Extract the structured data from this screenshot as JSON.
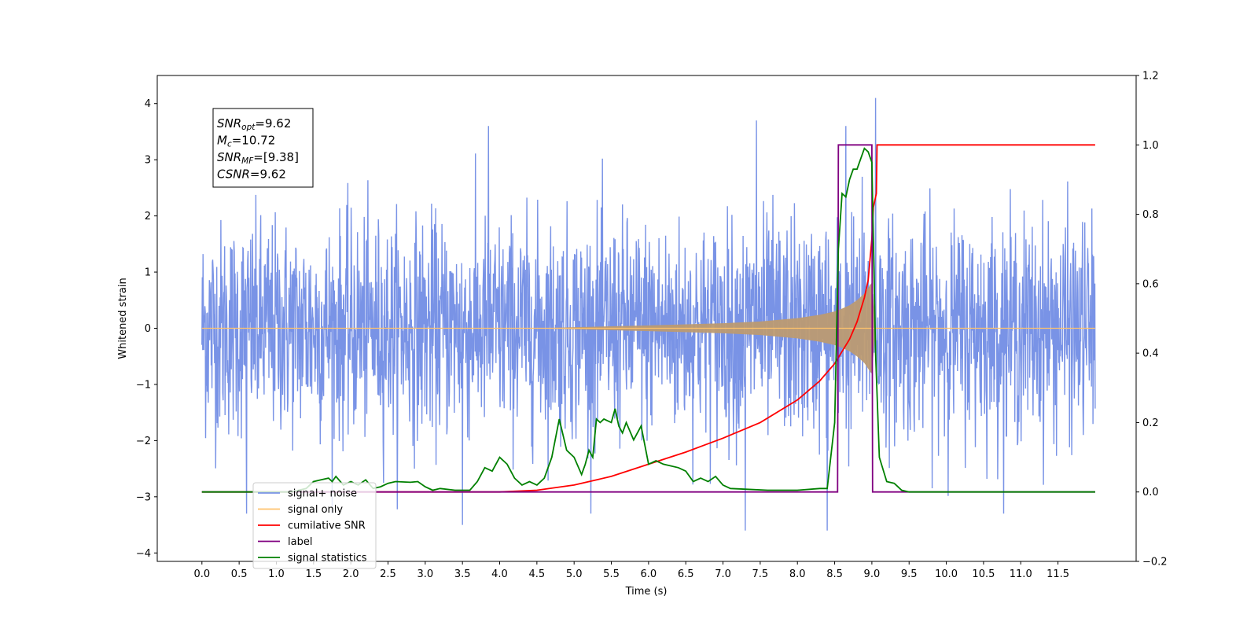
{
  "chart_data": {
    "type": "line",
    "xlabel": "Time (s)",
    "ylabel": "Whitened strain",
    "xlim": [
      -0.6,
      12.55
    ],
    "ylim": [
      -4.15,
      4.5
    ],
    "y2lim": [
      -0.2,
      1.2
    ],
    "x_ticks": [
      "0.0",
      "0.5",
      "1.0",
      "1.5",
      "2.0",
      "2.5",
      "3.0",
      "3.5",
      "4.0",
      "4.5",
      "5.0",
      "5.5",
      "6.0",
      "6.5",
      "7.0",
      "7.5",
      "8.0",
      "8.5",
      "9.0",
      "9.5",
      "10.0",
      "10.5",
      "11.0",
      "11.5"
    ],
    "x_tick_values": [
      0,
      0.5,
      1,
      1.5,
      2,
      2.5,
      3,
      3.5,
      4,
      4.5,
      5,
      5.5,
      6,
      6.5,
      7,
      7.5,
      8,
      8.5,
      9,
      9.5,
      10,
      10.5,
      11,
      11.5
    ],
    "y_ticks": [
      "−4",
      "−3",
      "−2",
      "−1",
      "0",
      "1",
      "2",
      "3",
      "4"
    ],
    "y_tick_values": [
      -4,
      -3,
      -2,
      -1,
      0,
      1,
      2,
      3,
      4
    ],
    "y2_ticks": [
      "−0.2",
      "0.0",
      "0.2",
      "0.4",
      "0.6",
      "0.8",
      "1.0",
      "1.2"
    ],
    "y2_tick_values": [
      -0.2,
      0,
      0.2,
      0.4,
      0.6,
      0.8,
      1.0,
      1.2
    ],
    "annotation": {
      "lines": [
        {
          "main": "SNR",
          "sub": "opt",
          "rest": "=9.62"
        },
        {
          "main": "M",
          "sub": "c",
          "rest": "=10.72"
        },
        {
          "main": "SNR",
          "sub": "MF",
          "rest": "=[9.38]"
        },
        {
          "main": "CSNR",
          "sub": "",
          "rest": "=9.62"
        }
      ]
    },
    "legend_position": "lower-left",
    "legend": [
      {
        "label": "signal+ noise",
        "color": "#7993e6"
      },
      {
        "label": "signal only",
        "color": "#ffc36b"
      },
      {
        "label": "cumilative SNR",
        "color": "#ff0000"
      },
      {
        "label": "label",
        "color": "#800080"
      },
      {
        "label": "signal statistics",
        "color": "#008000"
      }
    ],
    "series": [
      {
        "name": "signal+ noise",
        "axis": "left",
        "color": "#7993e6",
        "description_range": [
          0.0,
          12.0
        ],
        "peak_values": [
          {
            "x": 9.05,
            "y": 4.1
          },
          {
            "x": 7.45,
            "y": 3.7
          },
          {
            "x": 8.65,
            "y": 3.6
          },
          {
            "x": 3.85,
            "y": 3.6
          },
          {
            "x": 8.4,
            "y": -3.6
          },
          {
            "x": 7.3,
            "y": -3.6
          },
          {
            "x": 3.5,
            "y": -3.5
          },
          {
            "x": 0.6,
            "y": -3.3
          }
        ]
      },
      {
        "name": "signal only",
        "axis": "left",
        "color": "#ffc36b",
        "x": [
          0,
          4.5,
          5.0,
          6.0,
          7.0,
          7.5,
          8.0,
          8.3,
          8.5,
          8.6,
          8.7,
          8.8,
          8.9,
          8.97,
          9.0,
          9.05,
          12.0
        ],
        "y": [
          0.0,
          0.0,
          0.02,
          0.05,
          0.09,
          0.12,
          0.18,
          0.24,
          0.3,
          0.35,
          0.41,
          0.5,
          0.62,
          0.76,
          0.81,
          0.0,
          0.0
        ]
      },
      {
        "name": "cumilative SNR",
        "axis": "right",
        "color": "#ff0000",
        "x": [
          0.0,
          4.0,
          4.5,
          5.0,
          5.5,
          6.0,
          6.5,
          7.0,
          7.5,
          8.0,
          8.3,
          8.5,
          8.7,
          8.8,
          8.9,
          8.95,
          9.0,
          9.02,
          9.06,
          9.07,
          12.0
        ],
        "y": [
          0.0,
          0.0,
          0.005,
          0.02,
          0.045,
          0.08,
          0.115,
          0.155,
          0.2,
          0.265,
          0.32,
          0.37,
          0.44,
          0.49,
          0.56,
          0.61,
          0.73,
          0.82,
          0.86,
          1.0,
          1.0
        ]
      },
      {
        "name": "label",
        "axis": "right",
        "color": "#800080",
        "x": [
          0.0,
          8.54,
          8.55,
          9.0,
          9.01,
          12.0
        ],
        "y": [
          0.0,
          0.0,
          1.0,
          1.0,
          0.0,
          0.0
        ]
      },
      {
        "name": "signal statistics",
        "axis": "right",
        "color": "#008000",
        "x": [
          0.0,
          1.2,
          1.4,
          1.5,
          1.6,
          1.7,
          1.75,
          1.8,
          1.9,
          2.0,
          2.1,
          2.2,
          2.3,
          2.4,
          2.5,
          2.6,
          2.8,
          2.9,
          3.0,
          3.1,
          3.2,
          3.4,
          3.6,
          3.7,
          3.8,
          3.9,
          4.0,
          4.1,
          4.2,
          4.3,
          4.4,
          4.5,
          4.6,
          4.7,
          4.8,
          4.9,
          5.0,
          5.1,
          5.15,
          5.2,
          5.25,
          5.3,
          5.35,
          5.4,
          5.5,
          5.55,
          5.6,
          5.65,
          5.7,
          5.8,
          5.9,
          6.0,
          6.1,
          6.2,
          6.4,
          6.5,
          6.6,
          6.7,
          6.8,
          6.9,
          7.0,
          7.1,
          7.3,
          7.6,
          8.0,
          8.3,
          8.4,
          8.5,
          8.55,
          8.6,
          8.65,
          8.7,
          8.75,
          8.8,
          8.85,
          8.9,
          8.95,
          9.0,
          9.05,
          9.1,
          9.2,
          9.3,
          9.4,
          9.5,
          12.0
        ],
        "y": [
          0.0,
          0.0,
          0.01,
          0.03,
          0.035,
          0.04,
          0.03,
          0.045,
          0.02,
          0.03,
          0.02,
          0.035,
          0.01,
          0.015,
          0.025,
          0.03,
          0.028,
          0.03,
          0.015,
          0.005,
          0.01,
          0.005,
          0.005,
          0.03,
          0.07,
          0.06,
          0.1,
          0.08,
          0.04,
          0.02,
          0.03,
          0.02,
          0.04,
          0.1,
          0.21,
          0.12,
          0.1,
          0.05,
          0.08,
          0.12,
          0.1,
          0.21,
          0.2,
          0.21,
          0.2,
          0.24,
          0.19,
          0.17,
          0.2,
          0.15,
          0.19,
          0.08,
          0.09,
          0.08,
          0.07,
          0.06,
          0.03,
          0.04,
          0.03,
          0.045,
          0.02,
          0.01,
          0.008,
          0.005,
          0.005,
          0.01,
          0.01,
          0.2,
          0.7,
          0.86,
          0.85,
          0.9,
          0.93,
          0.93,
          0.96,
          0.99,
          0.98,
          0.95,
          0.4,
          0.1,
          0.03,
          0.025,
          0.005,
          0.0,
          0.0
        ]
      }
    ]
  }
}
